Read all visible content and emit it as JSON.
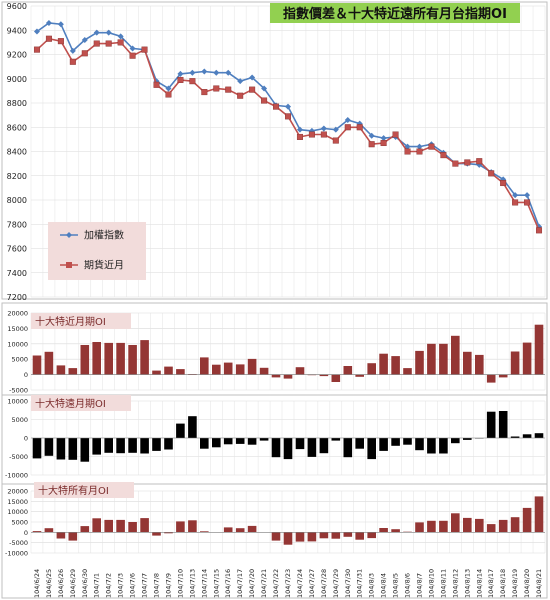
{
  "chart_data": [
    {
      "type": "line",
      "title": "指數價差＆十大特近遠所有月台指期OI",
      "categories": [
        "104/6/24",
        "104/6/25",
        "104/6/26",
        "104/6/29",
        "104/6/30",
        "104/7/1",
        "104/7/2",
        "104/7/3",
        "104/7/6",
        "104/7/7",
        "104/7/8",
        "104/7/9",
        "104/7/10",
        "104/7/13",
        "104/7/14",
        "104/7/15",
        "104/7/16",
        "104/7/17",
        "104/7/20",
        "104/7/21",
        "104/7/22",
        "104/7/23",
        "104/7/24",
        "104/7/27",
        "104/7/28",
        "104/7/29",
        "104/7/30",
        "104/7/31",
        "104/8/3",
        "104/8/4",
        "104/8/5",
        "104/8/6",
        "104/8/7",
        "104/8/10",
        "104/8/11",
        "104/8/12",
        "104/8/13",
        "104/8/14",
        "104/8/17",
        "104/8/18",
        "104/8/19",
        "104/8/20",
        "104/8/21"
      ],
      "x_tick_labels": [
        "104/6/24",
        "104/6/25",
        "104/6/26",
        "104/6/29",
        "104/6/30",
        "104/7/1",
        "104/7/2",
        "104/7/3",
        "104/7/6",
        "104/7/7",
        "104/7/8",
        "104/7/9",
        "104/7/10",
        "104/7/13",
        "104/7/14",
        "104/7/15",
        "104/7/16",
        "104/7/17",
        "104/7/20",
        "104/7/21",
        "104/7/22",
        "104/7/23",
        "104/7/24",
        "104/7/27",
        "104/7/28",
        "104/7/29",
        "104/7/30",
        "104/7/31",
        "104/8/3",
        "104/8/4",
        "104/8/5",
        "104/8/6",
        "104/8/7",
        "104/8/10",
        "104/8/11",
        "104/8/12",
        "104/8/13",
        "104/8/14",
        "104/8/17",
        "104/8/18",
        "104/8/19",
        "104/8/20",
        "104/8/21"
      ],
      "ylim": [
        7200,
        9600
      ],
      "y_ticks": [
        7200,
        7400,
        7600,
        7800,
        8000,
        8200,
        8400,
        8600,
        8800,
        9000,
        9200,
        9400,
        9600
      ],
      "legend": "center-left",
      "series": [
        {
          "name": "加權指數",
          "color": "#4f7fbf",
          "marker": "diamond",
          "values": [
            9390,
            9460,
            9450,
            9230,
            9320,
            9380,
            9380,
            9350,
            9250,
            9240,
            8980,
            8920,
            9040,
            9050,
            9060,
            9050,
            9050,
            8980,
            9010,
            8920,
            8780,
            8770,
            8580,
            8570,
            8590,
            8580,
            8660,
            8630,
            8530,
            8510,
            8520,
            8440,
            8440,
            8460,
            8390,
            8300,
            8300,
            8290,
            8230,
            8170,
            8040,
            8040,
            7780
          ]
        },
        {
          "name": "期貨近月",
          "color": "#c0504d",
          "marker": "square",
          "values": [
            9240,
            9330,
            9310,
            9140,
            9210,
            9290,
            9290,
            9300,
            9190,
            9240,
            8950,
            8870,
            8990,
            8980,
            8890,
            8920,
            8910,
            8860,
            8910,
            8820,
            8770,
            8690,
            8520,
            8540,
            8540,
            8490,
            8600,
            8600,
            8460,
            8470,
            8540,
            8400,
            8400,
            8440,
            8370,
            8300,
            8310,
            8320,
            8220,
            8140,
            7980,
            7980,
            7750
          ]
        }
      ]
    },
    {
      "type": "bar",
      "title": "十大特近月期OI",
      "color": "#943634",
      "ylim": [
        -5000,
        20000
      ],
      "y_ticks": [
        -5000,
        0,
        5000,
        10000,
        15000,
        20000
      ],
      "values": [
        6200,
        7400,
        3000,
        2100,
        9600,
        10600,
        10300,
        10300,
        9600,
        11200,
        1300,
        2600,
        1800,
        200,
        5600,
        3200,
        3900,
        3300,
        5100,
        2200,
        -900,
        -1300,
        2400,
        -200,
        -500,
        -2400,
        2800,
        -700,
        3700,
        6800,
        6000,
        2100,
        7700,
        10000,
        10000,
        12600,
        7400,
        6400,
        -2600,
        -900,
        7500,
        10400,
        16200
      ]
    },
    {
      "type": "bar",
      "title": "十大特遠月期OI",
      "color": "#000000",
      "ylim": [
        -10000,
        10000
      ],
      "y_ticks": [
        -10000,
        -5000,
        0,
        5000,
        10000
      ],
      "values": [
        -5500,
        -4800,
        -5800,
        -5900,
        -6400,
        -4500,
        -4000,
        -4100,
        -4000,
        -4200,
        -3500,
        -3100,
        3900,
        5900,
        -2900,
        -2500,
        -1700,
        -1600,
        -1800,
        -700,
        -5200,
        -5700,
        -3000,
        -5100,
        -4100,
        -700,
        -5200,
        -2900,
        -5700,
        -3500,
        -2100,
        -1800,
        -3300,
        -4200,
        -4200,
        -1400,
        -500,
        0,
        7100,
        7300,
        400,
        1000,
        1300
      ]
    },
    {
      "type": "bar",
      "title": "十大特所有月OI",
      "color": "#943634",
      "ylim": [
        -10000,
        20000
      ],
      "y_ticks": [
        -10000,
        -5000,
        0,
        5000,
        10000,
        15000,
        20000
      ],
      "values": [
        600,
        2000,
        -3000,
        -4000,
        3000,
        6800,
        6000,
        6000,
        5000,
        6900,
        -1600,
        -500,
        5300,
        5800,
        500,
        100,
        2400,
        2000,
        3100,
        100,
        -4000,
        -6000,
        -4500,
        -4400,
        -2900,
        -3100,
        -2200,
        -3600,
        -2800,
        2100,
        1500,
        300,
        4800,
        5600,
        5600,
        9200,
        7000,
        6500,
        4000,
        6000,
        7300,
        11800,
        17400
      ]
    }
  ]
}
